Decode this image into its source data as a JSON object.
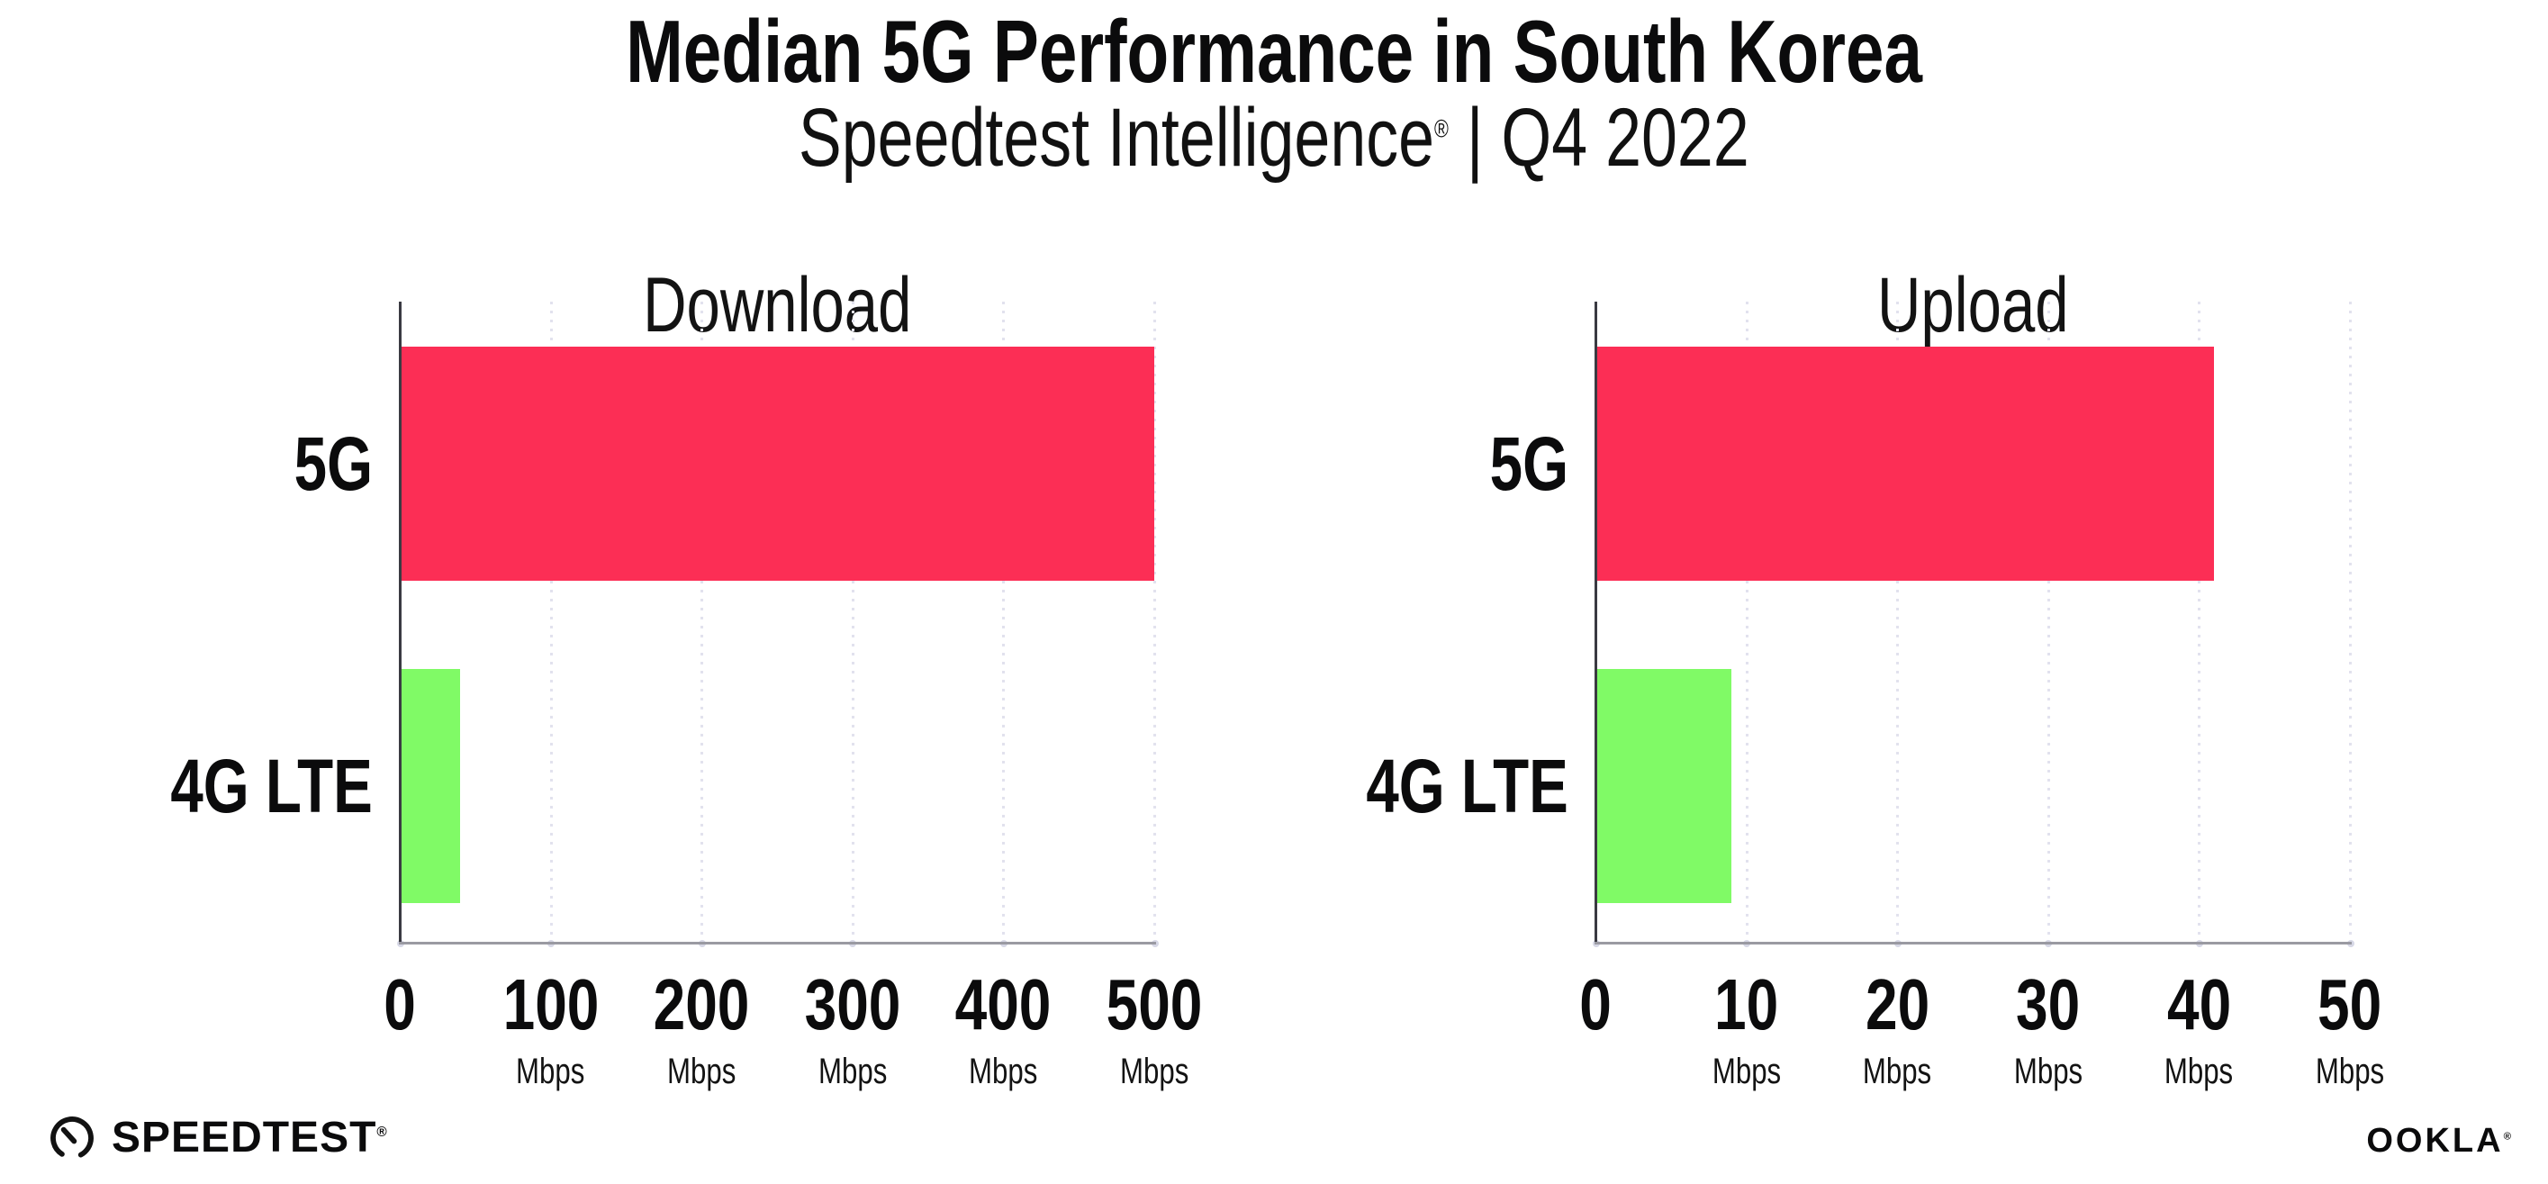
{
  "header": {
    "title": "Median 5G Performance in South Korea",
    "subtitle": {
      "brand": "Speedtest Intelligence",
      "reg_mark": "®",
      "rest": " | Q4 2022"
    }
  },
  "footer": {
    "speedtest": {
      "label": "SPEEDTEST",
      "mark": "®"
    },
    "ookla": {
      "label": "OOKLA",
      "mark": "®"
    }
  },
  "colors": {
    "bar_5g": "#FC2E55",
    "bar_4g_lte": "#80FA66",
    "grid_dot": "#E2E2EE",
    "y_axis": "#3A3A42",
    "x_axis": "#9A9AA2",
    "text": "#0B0B0C",
    "background": "#FFFFFF"
  },
  "chart_data": [
    {
      "type": "bar",
      "orientation": "horizontal",
      "title": "Download",
      "categories": [
        "5G",
        "4G LTE"
      ],
      "values": [
        500,
        40
      ],
      "value_unit": "Mbps",
      "xlim": [
        0,
        500
      ],
      "xticks": [
        0,
        100,
        200,
        300,
        400,
        500
      ],
      "xtick_unit_label": "Mbps",
      "bar_colors": [
        "#FC2E55",
        "#80FA66"
      ],
      "grid": "dotted vertical gridlines at each tick",
      "legend": "none"
    },
    {
      "type": "bar",
      "orientation": "horizontal",
      "title": "Upload",
      "categories": [
        "5G",
        "4G LTE"
      ],
      "values": [
        41,
        9
      ],
      "value_unit": "Mbps",
      "xlim": [
        0,
        50
      ],
      "xticks": [
        0,
        10,
        20,
        30,
        40,
        50
      ],
      "xtick_unit_label": "Mbps",
      "bar_colors": [
        "#FC2E55",
        "#80FA66"
      ],
      "grid": "dotted vertical gridlines at each tick",
      "legend": "none"
    }
  ]
}
